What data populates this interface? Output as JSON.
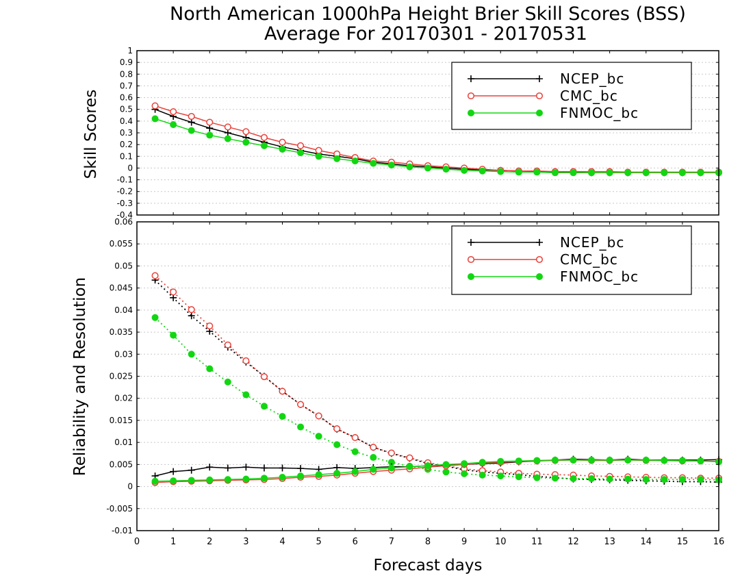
{
  "title_line1": "North American 1000hPa Height Brier Skill Scores (BSS)",
  "title_line2": "Average For 20170301 - 20170531",
  "xlabel": "Forecast days",
  "colors": {
    "NCEP_bc": "#000000",
    "CMC_bc": "#e8413a",
    "FNMOC_bc": "#13d613"
  },
  "chart_data": [
    {
      "type": "line",
      "ylabel": "Skill Scores",
      "xlim": [
        0,
        16
      ],
      "ylim": [
        -0.4,
        1
      ],
      "ytick_labels": [
        "-0.4",
        "-0.3",
        "-0.2",
        "-0.1",
        "0",
        "0.1",
        "0.2",
        "0.3",
        "0.4",
        "0.5",
        "0.6",
        "0.7",
        "0.8",
        "0.9",
        "1"
      ],
      "xtick_labels": [
        "0",
        "1",
        "2",
        "3",
        "4",
        "5",
        "6",
        "7",
        "8",
        "9",
        "10",
        "11",
        "12",
        "13",
        "14",
        "15",
        "16"
      ],
      "grid": true,
      "legend_position": "top-right",
      "x": [
        0.5,
        1,
        1.5,
        2,
        2.5,
        3,
        3.5,
        4,
        4.5,
        5,
        5.5,
        6,
        6.5,
        7,
        7.5,
        8,
        8.5,
        9,
        9.5,
        10,
        10.5,
        11,
        11.5,
        12,
        12.5,
        13,
        13.5,
        14,
        14.5,
        15,
        15.5,
        16
      ],
      "series": [
        {
          "name": "NCEP_bc",
          "marker": "plus",
          "style": "solid",
          "values": [
            0.5,
            0.44,
            0.39,
            0.34,
            0.3,
            0.26,
            0.22,
            0.18,
            0.15,
            0.12,
            0.1,
            0.08,
            0.05,
            0.035,
            0.02,
            0.01,
            0,
            -0.01,
            -0.015,
            -0.02,
            -0.025,
            -0.03,
            -0.035,
            -0.035,
            -0.04,
            -0.04,
            -0.04,
            -0.04,
            -0.04,
            -0.04,
            -0.04,
            -0.04
          ]
        },
        {
          "name": "CMC_bc",
          "marker": "open-circle",
          "style": "solid",
          "values": [
            0.53,
            0.48,
            0.44,
            0.39,
            0.35,
            0.31,
            0.26,
            0.22,
            0.19,
            0.15,
            0.12,
            0.09,
            0.06,
            0.05,
            0.035,
            0.02,
            0.01,
            0,
            -0.01,
            -0.02,
            -0.025,
            -0.025,
            -0.03,
            -0.03,
            -0.03,
            -0.03,
            -0.035,
            -0.035,
            -0.035,
            -0.035,
            -0.035,
            -0.035
          ]
        },
        {
          "name": "FNMOC_bc",
          "marker": "filled-circle",
          "style": "solid",
          "values": [
            0.42,
            0.37,
            0.32,
            0.28,
            0.25,
            0.22,
            0.19,
            0.16,
            0.13,
            0.1,
            0.08,
            0.06,
            0.04,
            0.025,
            0.01,
            0,
            -0.01,
            -0.02,
            -0.025,
            -0.03,
            -0.035,
            -0.035,
            -0.04,
            -0.04,
            -0.04,
            -0.04,
            -0.04,
            -0.04,
            -0.04,
            -0.04,
            -0.04,
            -0.04
          ]
        }
      ]
    },
    {
      "type": "line",
      "ylabel": "Reliability and Resolution",
      "xlim": [
        0,
        16
      ],
      "ylim": [
        -0.01,
        0.06
      ],
      "ytick_labels": [
        "-0.01",
        "-0.005",
        "0",
        "0.005",
        "0.01",
        "0.015",
        "0.02",
        "0.025",
        "0.03",
        "0.035",
        "0.04",
        "0.045",
        "0.05",
        "0.055",
        "0.06"
      ],
      "xtick_labels": [
        "0",
        "1",
        "2",
        "3",
        "4",
        "5",
        "6",
        "7",
        "8",
        "9",
        "10",
        "11",
        "12",
        "13",
        "14",
        "15",
        "16"
      ],
      "grid": true,
      "legend_position": "top-right",
      "x": [
        0.5,
        1,
        1.5,
        2,
        2.5,
        3,
        3.5,
        4,
        4.5,
        5,
        5.5,
        6,
        6.5,
        7,
        7.5,
        8,
        8.5,
        9,
        9.5,
        10,
        10.5,
        11,
        11.5,
        12,
        12.5,
        13,
        13.5,
        14,
        14.5,
        15,
        15.5,
        16
      ],
      "series": [
        {
          "name": "NCEP_bc",
          "marker": "plus",
          "style": "dotted",
          "metric": "reliability",
          "values": [
            0.0468,
            0.0428,
            0.0387,
            0.0352,
            0.0316,
            0.0282,
            0.025,
            0.0216,
            0.0186,
            0.016,
            0.013,
            0.0111,
            0.0089,
            0.0075,
            0.0064,
            0.0052,
            0.0046,
            0.0038,
            0.0033,
            0.003,
            0.0027,
            0.0023,
            0.002,
            0.0017,
            0.0016,
            0.0015,
            0.0014,
            0.0013,
            0.0012,
            0.0011,
            0.0011,
            0.001
          ]
        },
        {
          "name": "CMC_bc",
          "marker": "open-circle",
          "style": "dotted",
          "metric": "reliability",
          "values": [
            0.0478,
            0.0441,
            0.0401,
            0.0364,
            0.0321,
            0.0285,
            0.0249,
            0.0216,
            0.0186,
            0.016,
            0.0131,
            0.0111,
            0.0089,
            0.0076,
            0.0065,
            0.0054,
            0.0047,
            0.004,
            0.0036,
            0.0033,
            0.003,
            0.0028,
            0.0027,
            0.0026,
            0.0024,
            0.0023,
            0.0022,
            0.0021,
            0.002,
            0.002,
            0.0019,
            0.0019
          ]
        },
        {
          "name": "FNMOC_bc",
          "marker": "filled-circle",
          "style": "dotted",
          "metric": "reliability",
          "values": [
            0.0383,
            0.0343,
            0.03,
            0.0267,
            0.0237,
            0.0208,
            0.0182,
            0.0159,
            0.0135,
            0.0114,
            0.0095,
            0.0079,
            0.0066,
            0.0055,
            0.0046,
            0.0039,
            0.0033,
            0.0029,
            0.0026,
            0.0024,
            0.0022,
            0.002,
            0.0019,
            0.0018,
            0.0018,
            0.0017,
            0.0017,
            0.0016,
            0.0016,
            0.0016,
            0.0016,
            0.0015
          ]
        },
        {
          "name": "NCEP_bc",
          "marker": "plus",
          "style": "solid",
          "metric": "resolution",
          "values": [
            0.0024,
            0.0034,
            0.0037,
            0.0044,
            0.0042,
            0.0044,
            0.0042,
            0.0042,
            0.0041,
            0.0039,
            0.0043,
            0.0041,
            0.0043,
            0.0045,
            0.0045,
            0.0047,
            0.0048,
            0.005,
            0.0052,
            0.0053,
            0.0056,
            0.0058,
            0.006,
            0.0062,
            0.0061,
            0.006,
            0.0062,
            0.006,
            0.006,
            0.006,
            0.006,
            0.0061
          ]
        },
        {
          "name": "CMC_bc",
          "marker": "open-circle",
          "style": "solid",
          "metric": "resolution",
          "values": [
            0.0009,
            0.0011,
            0.0012,
            0.0013,
            0.0014,
            0.0015,
            0.0016,
            0.0018,
            0.0021,
            0.0023,
            0.0026,
            0.003,
            0.0034,
            0.0037,
            0.004,
            0.0044,
            0.0047,
            0.005,
            0.0053,
            0.0055,
            0.0057,
            0.0058,
            0.0059,
            0.006,
            0.0059,
            0.0059,
            0.006,
            0.0059,
            0.0059,
            0.0058,
            0.0058,
            0.0057
          ]
        },
        {
          "name": "FNMOC_bc",
          "marker": "filled-circle",
          "style": "solid",
          "metric": "resolution",
          "values": [
            0.0012,
            0.0013,
            0.0014,
            0.0015,
            0.0016,
            0.0017,
            0.0019,
            0.0021,
            0.0024,
            0.0027,
            0.003,
            0.0034,
            0.0039,
            0.0042,
            0.0045,
            0.0047,
            0.005,
            0.0052,
            0.0055,
            0.0057,
            0.0058,
            0.0059,
            0.006,
            0.006,
            0.006,
            0.006,
            0.006,
            0.006,
            0.0059,
            0.0059,
            0.0058,
            0.0056
          ]
        }
      ]
    }
  ]
}
